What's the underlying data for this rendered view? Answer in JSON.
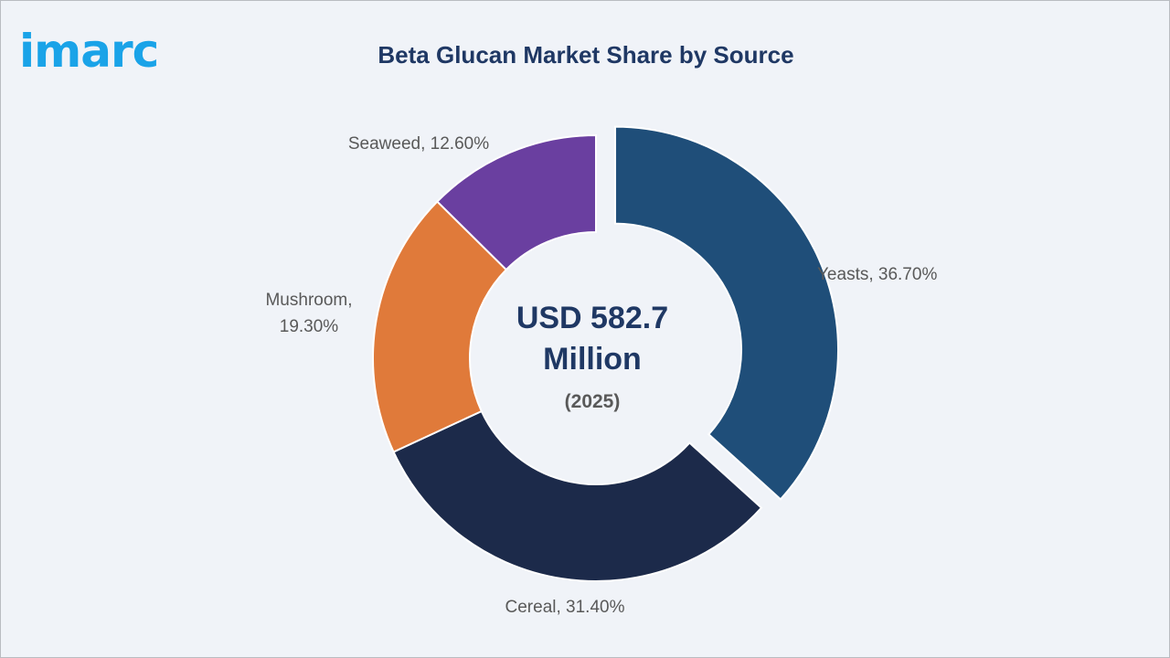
{
  "brand": {
    "logo_text": "imarc",
    "logo_color": "#1aa3e8"
  },
  "chart_data": {
    "type": "pie",
    "variant": "donut",
    "title": "Beta Glucan Market Share by Source",
    "center_text": [
      "USD 582.7",
      "Million"
    ],
    "center_subtext": "(2025)",
    "slices": [
      {
        "label": "Yeasts",
        "value": 36.7,
        "value_text": "36.70%",
        "color": "#1f4e79",
        "exploded": true
      },
      {
        "label": "Cereal",
        "value": 31.4,
        "value_text": "31.40%",
        "color": "#1c2a4a",
        "exploded": false
      },
      {
        "label": "Mushroom",
        "value": 19.3,
        "value_text": "19.30%",
        "color": "#e07a3a",
        "exploded": false
      },
      {
        "label": "Seaweed",
        "value": 12.6,
        "value_text": "12.60%",
        "color": "#6a3fa0",
        "exploded": false
      }
    ],
    "label_format": "{label}, {value_text}"
  }
}
